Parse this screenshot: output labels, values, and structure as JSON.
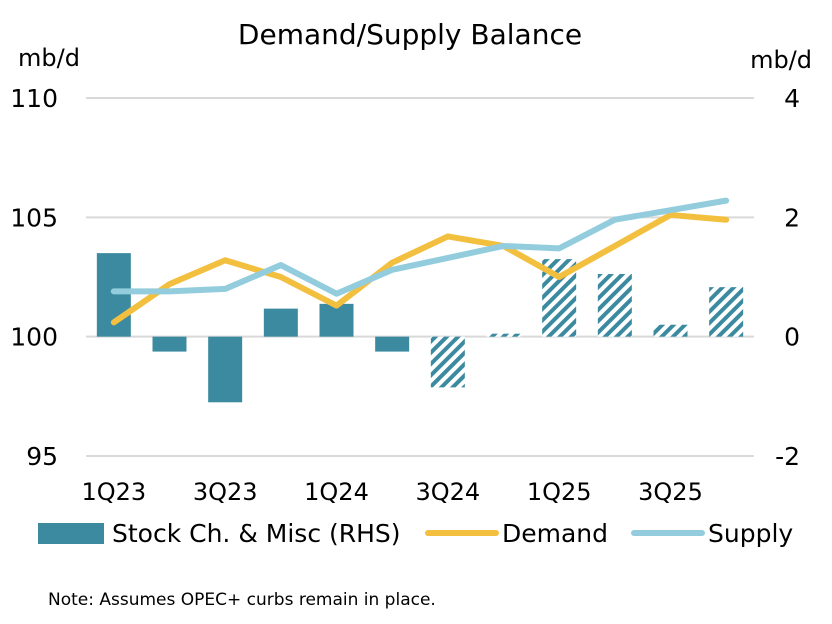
{
  "chart_data": {
    "type": "bar",
    "title": "Demand/Supply Balance",
    "ylabel_left": "mb/d",
    "ylabel_right": "mb/d",
    "left_axis": {
      "min": 95,
      "max": 110,
      "ticks": [
        "95",
        "100",
        "105",
        "110"
      ]
    },
    "right_axis": {
      "min": -2,
      "max": 4,
      "ticks": [
        "-2",
        "0",
        "2",
        "4"
      ]
    },
    "categories": [
      "1Q23",
      "2Q23",
      "3Q23",
      "4Q23",
      "1Q24",
      "2Q24",
      "3Q24",
      "4Q24",
      "1Q25",
      "2Q25",
      "3Q25",
      "4Q25"
    ],
    "x_tick_labels": [
      "1Q23",
      "",
      "3Q23",
      "",
      "1Q24",
      "",
      "3Q24",
      "",
      "1Q25",
      "",
      "3Q25",
      ""
    ],
    "projected_from_index": 6,
    "series": [
      {
        "name": "Stock Ch. & Misc (RHS)",
        "type": "bar",
        "axis": "right",
        "color": "#3c8aa0",
        "values": [
          1.4,
          -0.25,
          -1.1,
          0.47,
          0.55,
          -0.25,
          -0.85,
          0.05,
          1.3,
          1.05,
          0.2,
          0.83
        ]
      },
      {
        "name": "Demand",
        "type": "line",
        "axis": "left",
        "color": "#f2bf3f",
        "values": [
          100.6,
          102.2,
          103.2,
          102.5,
          101.3,
          103.1,
          104.2,
          103.8,
          102.5,
          103.8,
          105.1,
          104.9
        ]
      },
      {
        "name": "Supply",
        "type": "line",
        "axis": "left",
        "color": "#93cddd",
        "values": [
          101.9,
          101.9,
          102.0,
          103.0,
          101.8,
          102.8,
          103.3,
          103.8,
          103.7,
          104.9,
          105.3,
          105.7
        ]
      }
    ],
    "legend_position": "bottom",
    "grid": true
  },
  "note": "Note: Assumes OPEC+ curbs remain in place."
}
